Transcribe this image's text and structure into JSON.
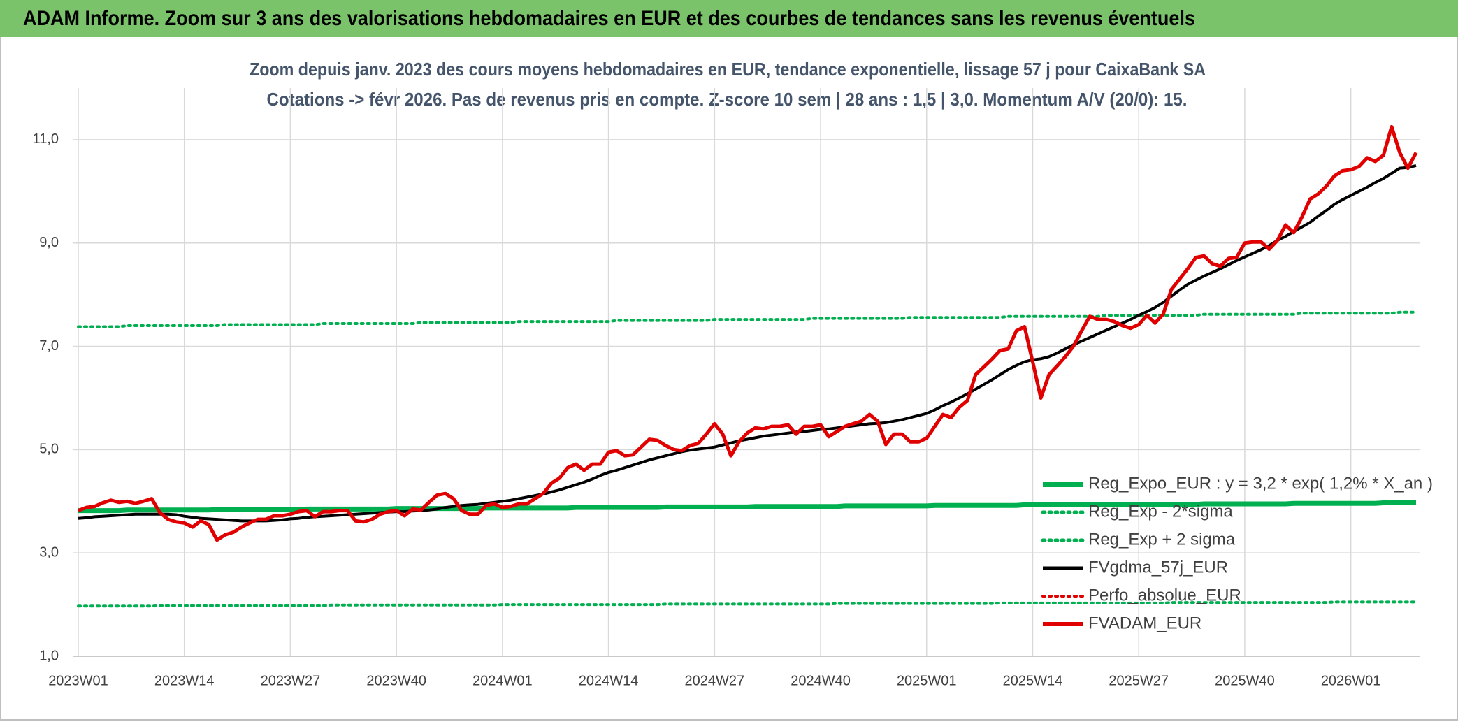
{
  "header_title": "ADAM Informe. Zoom sur 3 ans des valorisations hebdomadaires en EUR et des courbes de tendances sans les revenus éventuels",
  "chart_data": {
    "type": "line",
    "title": "Zoom depuis janv. 2023 des cours moyens hebdomadaires en EUR, tendance exponentielle, lissage 57 j pour CaixaBank SA",
    "subtitle": "Cotations -> févr 2026. Pas de revenus pris en compte. Z-score 10 sem | 28 ans : 1,5 | 3,0. Momentum A/V (20/0): 15.",
    "categories": [
      "2023W01",
      null,
      null,
      null,
      null,
      null,
      null,
      null,
      null,
      null,
      null,
      null,
      null,
      "2023W14",
      null,
      null,
      null,
      null,
      null,
      null,
      null,
      null,
      null,
      null,
      null,
      null,
      "2023W27",
      null,
      null,
      null,
      null,
      null,
      null,
      null,
      null,
      null,
      null,
      null,
      null,
      "2023W40",
      null,
      null,
      null,
      null,
      null,
      null,
      null,
      null,
      null,
      null,
      null,
      null,
      "2024W01",
      null,
      null,
      null,
      null,
      null,
      null,
      null,
      null,
      null,
      null,
      null,
      null,
      "2024W14",
      null,
      null,
      null,
      null,
      null,
      null,
      null,
      null,
      null,
      null,
      null,
      null,
      "2024W27",
      null,
      null,
      null,
      null,
      null,
      null,
      null,
      null,
      null,
      null,
      null,
      null,
      "2024W40",
      null,
      null,
      null,
      null,
      null,
      null,
      null,
      null,
      null,
      null,
      null,
      null,
      "2025W01",
      null,
      null,
      null,
      null,
      null,
      null,
      null,
      null,
      null,
      null,
      null,
      null,
      "2025W14",
      null,
      null,
      null,
      null,
      null,
      null,
      null,
      null,
      null,
      null,
      null,
      null,
      "2025W27",
      null,
      null,
      null,
      null,
      null,
      null,
      null,
      null,
      null,
      null,
      null,
      null,
      "2025W40",
      null,
      null,
      null,
      null,
      null,
      null,
      null,
      null,
      null,
      null,
      null,
      null,
      "2026W01",
      null,
      null,
      null,
      null,
      null,
      null,
      null,
      null
    ],
    "series": [
      {
        "name": "Reg_Expo_EUR : y = 3,2 * exp( 1,2% *  X_an )",
        "color": "#00b050",
        "style": "solid",
        "values": [
          3.82,
          3.82,
          3.82,
          3.82,
          3.82,
          3.82,
          3.83,
          3.83,
          3.83,
          3.83,
          3.83,
          3.83,
          3.83,
          3.83,
          3.83,
          3.83,
          3.83,
          3.84,
          3.84,
          3.84,
          3.84,
          3.84,
          3.84,
          3.84,
          3.84,
          3.84,
          3.84,
          3.84,
          3.85,
          3.85,
          3.85,
          3.85,
          3.85,
          3.85,
          3.85,
          3.85,
          3.85,
          3.85,
          3.85,
          3.86,
          3.86,
          3.86,
          3.86,
          3.86,
          3.86,
          3.86,
          3.86,
          3.86,
          3.86,
          3.86,
          3.87,
          3.87,
          3.87,
          3.87,
          3.87,
          3.87,
          3.87,
          3.87,
          3.87,
          3.87,
          3.87,
          3.88,
          3.88,
          3.88,
          3.88,
          3.88,
          3.88,
          3.88,
          3.88,
          3.88,
          3.88,
          3.88,
          3.89,
          3.89,
          3.89,
          3.89,
          3.89,
          3.89,
          3.89,
          3.89,
          3.89,
          3.89,
          3.89,
          3.9,
          3.9,
          3.9,
          3.9,
          3.9,
          3.9,
          3.9,
          3.9,
          3.9,
          3.9,
          3.9,
          3.91,
          3.91,
          3.91,
          3.91,
          3.91,
          3.91,
          3.91,
          3.91,
          3.91,
          3.91,
          3.91,
          3.92,
          3.92,
          3.92,
          3.92,
          3.92,
          3.92,
          3.92,
          3.92,
          3.92,
          3.92,
          3.92,
          3.93,
          3.93,
          3.93,
          3.93,
          3.93,
          3.93,
          3.93,
          3.93,
          3.93,
          3.93,
          3.93,
          3.94,
          3.94,
          3.94,
          3.94,
          3.94,
          3.94,
          3.94,
          3.94,
          3.94,
          3.94,
          3.94,
          3.95,
          3.95,
          3.95,
          3.95,
          3.95,
          3.95,
          3.95,
          3.95,
          3.95,
          3.95,
          3.95,
          3.96,
          3.96,
          3.96,
          3.96,
          3.96,
          3.96,
          3.96,
          3.96,
          3.96,
          3.96,
          3.96,
          3.97,
          3.97,
          3.97,
          3.97,
          3.97
        ]
      },
      {
        "name": "Reg_Exp - 2*sigma",
        "color": "#00b050",
        "style": "dotted",
        "values": [
          1.97,
          1.97,
          1.97,
          1.97,
          1.97,
          1.97,
          1.97,
          1.97,
          1.97,
          1.97,
          1.98,
          1.98,
          1.98,
          1.98,
          1.98,
          1.98,
          1.98,
          1.98,
          1.98,
          1.98,
          1.98,
          1.98,
          1.98,
          1.98,
          1.98,
          1.98,
          1.98,
          1.98,
          1.98,
          1.98,
          1.98,
          1.99,
          1.99,
          1.99,
          1.99,
          1.99,
          1.99,
          1.99,
          1.99,
          1.99,
          1.99,
          1.99,
          1.99,
          1.99,
          1.99,
          1.99,
          1.99,
          1.99,
          1.99,
          1.99,
          1.99,
          1.99,
          2.0,
          2.0,
          2.0,
          2.0,
          2.0,
          2.0,
          2.0,
          2.0,
          2.0,
          2.0,
          2.0,
          2.0,
          2.0,
          2.0,
          2.0,
          2.0,
          2.0,
          2.0,
          2.0,
          2.0,
          2.01,
          2.01,
          2.01,
          2.01,
          2.01,
          2.01,
          2.01,
          2.01,
          2.01,
          2.01,
          2.01,
          2.01,
          2.01,
          2.01,
          2.01,
          2.01,
          2.01,
          2.01,
          2.01,
          2.01,
          2.01,
          2.02,
          2.02,
          2.02,
          2.02,
          2.02,
          2.02,
          2.02,
          2.02,
          2.02,
          2.02,
          2.02,
          2.02,
          2.02,
          2.02,
          2.02,
          2.02,
          2.02,
          2.02,
          2.02,
          2.02,
          2.03,
          2.03,
          2.03,
          2.03,
          2.03,
          2.03,
          2.03,
          2.03,
          2.03,
          2.03,
          2.03,
          2.03,
          2.03,
          2.03,
          2.03,
          2.03,
          2.03,
          2.03,
          2.03,
          2.03,
          2.03,
          2.04,
          2.04,
          2.04,
          2.04,
          2.04,
          2.04,
          2.04,
          2.04,
          2.04,
          2.04,
          2.04,
          2.04,
          2.04,
          2.04,
          2.04,
          2.04,
          2.04,
          2.04,
          2.04,
          2.04,
          2.05,
          2.05,
          2.05,
          2.05,
          2.05,
          2.05,
          2.05,
          2.05,
          2.05,
          2.05,
          2.05
        ]
      },
      {
        "name": "Reg_Exp + 2 sigma",
        "color": "#00b050",
        "style": "dotted",
        "values": [
          7.38,
          7.38,
          7.38,
          7.38,
          7.38,
          7.38,
          7.4,
          7.4,
          7.4,
          7.4,
          7.4,
          7.4,
          7.4,
          7.4,
          7.4,
          7.4,
          7.4,
          7.4,
          7.42,
          7.42,
          7.42,
          7.42,
          7.42,
          7.42,
          7.42,
          7.42,
          7.42,
          7.42,
          7.42,
          7.42,
          7.44,
          7.44,
          7.44,
          7.44,
          7.44,
          7.44,
          7.44,
          7.44,
          7.44,
          7.44,
          7.44,
          7.44,
          7.46,
          7.46,
          7.46,
          7.46,
          7.46,
          7.46,
          7.46,
          7.46,
          7.46,
          7.46,
          7.46,
          7.46,
          7.48,
          7.48,
          7.48,
          7.48,
          7.48,
          7.48,
          7.48,
          7.48,
          7.48,
          7.48,
          7.48,
          7.48,
          7.5,
          7.5,
          7.5,
          7.5,
          7.5,
          7.5,
          7.5,
          7.5,
          7.5,
          7.5,
          7.5,
          7.5,
          7.52,
          7.52,
          7.52,
          7.52,
          7.52,
          7.52,
          7.52,
          7.52,
          7.52,
          7.52,
          7.52,
          7.52,
          7.54,
          7.54,
          7.54,
          7.54,
          7.54,
          7.54,
          7.54,
          7.54,
          7.54,
          7.54,
          7.54,
          7.54,
          7.56,
          7.56,
          7.56,
          7.56,
          7.56,
          7.56,
          7.56,
          7.56,
          7.56,
          7.56,
          7.56,
          7.56,
          7.58,
          7.58,
          7.58,
          7.58,
          7.58,
          7.58,
          7.58,
          7.58,
          7.58,
          7.58,
          7.58,
          7.58,
          7.6,
          7.6,
          7.6,
          7.6,
          7.6,
          7.6,
          7.6,
          7.6,
          7.6,
          7.6,
          7.6,
          7.6,
          7.62,
          7.62,
          7.62,
          7.62,
          7.62,
          7.62,
          7.62,
          7.62,
          7.62,
          7.62,
          7.62,
          7.62,
          7.64,
          7.64,
          7.64,
          7.64,
          7.64,
          7.64,
          7.64,
          7.64,
          7.64,
          7.64,
          7.64,
          7.64,
          7.66,
          7.66,
          7.66
        ]
      },
      {
        "name": "FVgdma_57j_EUR",
        "color": "#000000",
        "style": "solid",
        "values": [
          3.67,
          3.68,
          3.7,
          3.71,
          3.72,
          3.73,
          3.74,
          3.75,
          3.75,
          3.75,
          3.75,
          3.75,
          3.74,
          3.71,
          3.69,
          3.67,
          3.66,
          3.65,
          3.64,
          3.63,
          3.62,
          3.62,
          3.62,
          3.62,
          3.63,
          3.64,
          3.66,
          3.67,
          3.69,
          3.7,
          3.71,
          3.72,
          3.73,
          3.74,
          3.75,
          3.76,
          3.77,
          3.78,
          3.79,
          3.8,
          3.8,
          3.81,
          3.82,
          3.83,
          3.85,
          3.88,
          3.9,
          3.92,
          3.93,
          3.94,
          3.96,
          3.98,
          4.0,
          4.02,
          4.05,
          4.08,
          4.11,
          4.14,
          4.18,
          4.22,
          4.27,
          4.32,
          4.37,
          4.43,
          4.5,
          4.56,
          4.6,
          4.65,
          4.7,
          4.75,
          4.8,
          4.84,
          4.88,
          4.92,
          4.96,
          4.99,
          5.01,
          5.03,
          5.05,
          5.09,
          5.13,
          5.17,
          5.2,
          5.23,
          5.26,
          5.28,
          5.3,
          5.32,
          5.34,
          5.35,
          5.37,
          5.39,
          5.4,
          5.42,
          5.44,
          5.46,
          5.48,
          5.5,
          5.51,
          5.52,
          5.55,
          5.58,
          5.62,
          5.66,
          5.7,
          5.77,
          5.85,
          5.92,
          6.0,
          6.08,
          6.17,
          6.26,
          6.35,
          6.45,
          6.55,
          6.63,
          6.7,
          6.74,
          6.76,
          6.8,
          6.87,
          6.95,
          7.03,
          7.1,
          7.17,
          7.24,
          7.31,
          7.38,
          7.45,
          7.52,
          7.6,
          7.67,
          7.75,
          7.85,
          7.97,
          8.09,
          8.2,
          8.28,
          8.36,
          8.43,
          8.5,
          8.58,
          8.66,
          8.73,
          8.8,
          8.87,
          8.95,
          9.05,
          9.13,
          9.22,
          9.31,
          9.4,
          9.52,
          9.63,
          9.75,
          9.84,
          9.92,
          10.0,
          10.08,
          10.17,
          10.25,
          10.35,
          10.45,
          10.46,
          10.5
        ]
      },
      {
        "name": "Perfo_absolue_EUR",
        "color": "#e00000",
        "style": "dotted",
        "values": [
          null,
          null,
          null,
          null,
          null,
          null,
          null,
          null,
          null,
          null,
          null,
          null,
          null,
          null,
          null,
          null,
          null,
          null,
          null,
          null,
          null,
          null,
          null,
          null,
          null,
          null,
          null,
          null,
          null,
          null,
          null,
          null,
          null,
          null,
          null,
          null,
          null,
          null,
          null,
          null,
          null,
          null,
          null,
          null,
          null,
          null,
          null,
          null,
          null,
          null,
          null,
          null,
          null,
          null,
          null,
          null,
          null,
          null,
          null,
          null,
          null,
          null,
          null,
          null,
          null,
          null,
          null,
          null,
          null,
          null,
          null,
          null,
          null,
          null,
          null,
          null,
          null,
          null,
          null,
          null,
          null,
          null,
          null,
          null,
          null,
          null,
          null,
          null,
          null,
          null,
          null,
          null,
          null,
          null,
          null,
          null,
          null,
          null,
          null,
          null,
          null,
          null,
          null,
          null,
          null,
          null,
          null,
          null,
          null,
          null,
          null,
          null,
          null,
          null,
          null,
          null,
          null,
          null,
          null,
          null,
          null,
          null,
          null,
          null,
          null,
          null,
          null,
          null,
          null,
          null,
          null,
          null,
          null,
          null,
          null,
          null,
          null,
          null,
          null,
          null,
          null,
          null,
          null,
          null,
          null,
          null,
          null,
          null,
          null,
          null,
          null,
          null,
          null,
          null,
          null,
          null,
          null,
          null,
          null,
          null,
          null,
          null,
          null,
          null,
          null
        ]
      },
      {
        "name": "FVADAM_EUR",
        "color": "#e00000",
        "style": "solid",
        "values": [
          3.82,
          3.88,
          3.9,
          3.97,
          4.02,
          3.98,
          4.0,
          3.96,
          4.0,
          4.05,
          3.78,
          3.65,
          3.6,
          3.58,
          3.5,
          3.62,
          3.55,
          3.25,
          3.35,
          3.4,
          3.5,
          3.58,
          3.65,
          3.65,
          3.72,
          3.72,
          3.75,
          3.8,
          3.82,
          3.7,
          3.8,
          3.8,
          3.82,
          3.82,
          3.62,
          3.6,
          3.65,
          3.75,
          3.8,
          3.82,
          3.72,
          3.85,
          3.83,
          3.98,
          4.12,
          4.15,
          4.05,
          3.82,
          3.75,
          3.75,
          3.92,
          3.95,
          3.88,
          3.9,
          3.95,
          3.95,
          4.05,
          4.15,
          4.35,
          4.45,
          4.65,
          4.72,
          4.6,
          4.72,
          4.72,
          4.95,
          4.98,
          4.88,
          4.9,
          5.05,
          5.2,
          5.18,
          5.08,
          5.0,
          4.98,
          5.08,
          5.12,
          5.3,
          5.5,
          5.3,
          4.88,
          5.15,
          5.32,
          5.42,
          5.4,
          5.45,
          5.45,
          5.48,
          5.3,
          5.45,
          5.45,
          5.48,
          5.25,
          5.35,
          5.45,
          5.5,
          5.55,
          5.68,
          5.55,
          5.1,
          5.3,
          5.3,
          5.15,
          5.15,
          5.22,
          5.45,
          5.68,
          5.62,
          5.82,
          5.95,
          6.45,
          6.6,
          6.75,
          6.92,
          6.95,
          7.3,
          7.38,
          6.7,
          6.0,
          6.45,
          6.62,
          6.8,
          7.0,
          7.3,
          7.58,
          7.52,
          7.52,
          7.48,
          7.4,
          7.35,
          7.42,
          7.6,
          7.45,
          7.62,
          8.1,
          8.3,
          8.5,
          8.72,
          8.75,
          8.6,
          8.55,
          8.7,
          8.72,
          9.0,
          9.02,
          9.02,
          8.88,
          9.05,
          9.35,
          9.2,
          9.5,
          9.85,
          9.95,
          10.1,
          10.3,
          10.4,
          10.42,
          10.48,
          10.65,
          10.58,
          10.7,
          11.25,
          10.75,
          10.45,
          10.75
        ]
      }
    ],
    "ylim": [
      1,
      12
    ],
    "yticks": [
      {
        "value": 1,
        "label": "1,0"
      },
      {
        "value": 3,
        "label": "3,0"
      },
      {
        "value": 5,
        "label": "5,0"
      },
      {
        "value": 7,
        "label": "7,0"
      },
      {
        "value": 9,
        "label": "9,0"
      },
      {
        "value": 11,
        "label": "11,0"
      }
    ],
    "grid": true
  }
}
